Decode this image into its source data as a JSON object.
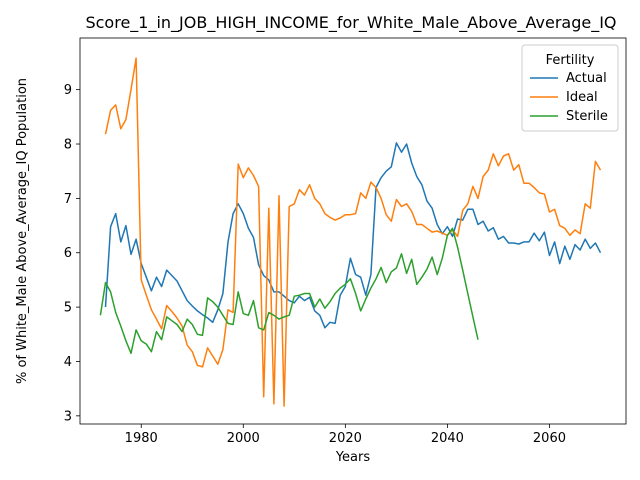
{
  "chart_data": {
    "type": "line",
    "title": "Score_1_in_JOB_HIGH_INCOME_for_White_Male_Above_Average_IQ",
    "xlabel": "Years",
    "ylabel": "% of White_Male Above_Average_IQ Population",
    "xlim": [
      1968,
      2075
    ],
    "ylim": [
      2.85,
      9.95
    ],
    "xticks": [
      1980,
      2000,
      2020,
      2040,
      2060
    ],
    "yticks": [
      3,
      4,
      5,
      6,
      7,
      8,
      9
    ],
    "grid": false,
    "legend": {
      "title": "Fertility",
      "position": "top-right"
    },
    "series": [
      {
        "name": "Actual",
        "color": "#1f77b4",
        "points": [
          [
            1973,
            5.0
          ],
          [
            1974,
            6.48
          ],
          [
            1975,
            6.72
          ],
          [
            1976,
            6.2
          ],
          [
            1977,
            6.5
          ],
          [
            1978,
            5.97
          ],
          [
            1979,
            6.25
          ],
          [
            1980,
            5.8
          ],
          [
            1981,
            5.55
          ],
          [
            1982,
            5.3
          ],
          [
            1983,
            5.55
          ],
          [
            1984,
            5.38
          ],
          [
            1985,
            5.68
          ],
          [
            1986,
            5.58
          ],
          [
            1987,
            5.48
          ],
          [
            1988,
            5.3
          ],
          [
            1989,
            5.12
          ],
          [
            1990,
            5.02
          ],
          [
            1991,
            4.93
          ],
          [
            1992,
            4.86
          ],
          [
            1993,
            4.8
          ],
          [
            1994,
            4.72
          ],
          [
            1995,
            4.95
          ],
          [
            1996,
            5.25
          ],
          [
            1997,
            6.2
          ],
          [
            1998,
            6.72
          ],
          [
            1999,
            6.9
          ],
          [
            2000,
            6.72
          ],
          [
            2001,
            6.45
          ],
          [
            2002,
            6.28
          ],
          [
            2003,
            5.78
          ],
          [
            2004,
            5.58
          ],
          [
            2005,
            5.5
          ],
          [
            2006,
            5.28
          ],
          [
            2007,
            5.28
          ],
          [
            2008,
            5.2
          ],
          [
            2009,
            5.12
          ],
          [
            2010,
            5.08
          ],
          [
            2011,
            5.2
          ],
          [
            2012,
            5.12
          ],
          [
            2013,
            5.18
          ],
          [
            2014,
            4.93
          ],
          [
            2015,
            4.85
          ],
          [
            2016,
            4.62
          ],
          [
            2017,
            4.72
          ],
          [
            2018,
            4.7
          ],
          [
            2019,
            5.22
          ],
          [
            2020,
            5.38
          ],
          [
            2021,
            5.9
          ],
          [
            2022,
            5.6
          ],
          [
            2023,
            5.55
          ],
          [
            2024,
            5.22
          ],
          [
            2025,
            5.6
          ],
          [
            2026,
            7.2
          ],
          [
            2027,
            7.38
          ],
          [
            2028,
            7.5
          ],
          [
            2029,
            7.58
          ],
          [
            2030,
            8.02
          ],
          [
            2031,
            7.85
          ],
          [
            2032,
            8.0
          ],
          [
            2033,
            7.65
          ],
          [
            2034,
            7.4
          ],
          [
            2035,
            7.25
          ],
          [
            2036,
            6.95
          ],
          [
            2037,
            6.82
          ],
          [
            2038,
            6.52
          ],
          [
            2039,
            6.35
          ],
          [
            2040,
            6.48
          ],
          [
            2041,
            6.3
          ],
          [
            2042,
            6.62
          ],
          [
            2043,
            6.6
          ],
          [
            2044,
            6.8
          ],
          [
            2045,
            6.8
          ],
          [
            2046,
            6.52
          ],
          [
            2047,
            6.58
          ],
          [
            2048,
            6.4
          ],
          [
            2049,
            6.46
          ],
          [
            2050,
            6.25
          ],
          [
            2051,
            6.3
          ],
          [
            2052,
            6.18
          ],
          [
            2053,
            6.18
          ],
          [
            2054,
            6.16
          ],
          [
            2055,
            6.2
          ],
          [
            2056,
            6.2
          ],
          [
            2057,
            6.36
          ],
          [
            2058,
            6.22
          ],
          [
            2059,
            6.38
          ],
          [
            2060,
            5.95
          ],
          [
            2061,
            6.2
          ],
          [
            2062,
            5.8
          ],
          [
            2063,
            6.12
          ],
          [
            2064,
            5.88
          ],
          [
            2065,
            6.15
          ],
          [
            2066,
            6.05
          ],
          [
            2067,
            6.25
          ],
          [
            2068,
            6.08
          ],
          [
            2069,
            6.18
          ],
          [
            2070,
            6.0
          ]
        ]
      },
      {
        "name": "Ideal",
        "color": "#ff7f0e",
        "points": [
          [
            1973,
            8.18
          ],
          [
            1974,
            8.62
          ],
          [
            1975,
            8.72
          ],
          [
            1976,
            8.28
          ],
          [
            1977,
            8.45
          ],
          [
            1978,
            9.0
          ],
          [
            1979,
            9.58
          ],
          [
            1980,
            5.5
          ],
          [
            1981,
            5.22
          ],
          [
            1982,
            4.95
          ],
          [
            1983,
            4.78
          ],
          [
            1984,
            4.6
          ],
          [
            1985,
            5.03
          ],
          [
            1986,
            4.92
          ],
          [
            1987,
            4.8
          ],
          [
            1988,
            4.65
          ],
          [
            1989,
            4.3
          ],
          [
            1990,
            4.18
          ],
          [
            1991,
            3.93
          ],
          [
            1992,
            3.9
          ],
          [
            1993,
            4.25
          ],
          [
            1994,
            4.1
          ],
          [
            1995,
            3.95
          ],
          [
            1996,
            4.22
          ],
          [
            1997,
            4.95
          ],
          [
            1998,
            4.9
          ],
          [
            1999,
            7.63
          ],
          [
            2000,
            7.38
          ],
          [
            2001,
            7.56
          ],
          [
            2002,
            7.42
          ],
          [
            2003,
            7.22
          ],
          [
            2004,
            3.35
          ],
          [
            2005,
            6.82
          ],
          [
            2006,
            3.22
          ],
          [
            2007,
            7.05
          ],
          [
            2008,
            3.18
          ],
          [
            2009,
            6.85
          ],
          [
            2010,
            6.9
          ],
          [
            2011,
            7.16
          ],
          [
            2012,
            7.06
          ],
          [
            2013,
            7.25
          ],
          [
            2014,
            7.0
          ],
          [
            2015,
            6.9
          ],
          [
            2016,
            6.72
          ],
          [
            2017,
            6.65
          ],
          [
            2018,
            6.6
          ],
          [
            2019,
            6.64
          ],
          [
            2020,
            6.7
          ],
          [
            2021,
            6.7
          ],
          [
            2022,
            6.72
          ],
          [
            2023,
            7.1
          ],
          [
            2024,
            7.0
          ],
          [
            2025,
            7.3
          ],
          [
            2026,
            7.2
          ],
          [
            2027,
            7.0
          ],
          [
            2028,
            6.7
          ],
          [
            2029,
            6.58
          ],
          [
            2030,
            6.98
          ],
          [
            2031,
            6.85
          ],
          [
            2032,
            6.9
          ],
          [
            2033,
            6.76
          ],
          [
            2034,
            6.52
          ],
          [
            2035,
            6.52
          ],
          [
            2036,
            6.45
          ],
          [
            2037,
            6.38
          ],
          [
            2038,
            6.4
          ],
          [
            2039,
            6.36
          ],
          [
            2040,
            6.32
          ],
          [
            2041,
            6.42
          ],
          [
            2042,
            6.3
          ],
          [
            2043,
            6.78
          ],
          [
            2044,
            6.9
          ],
          [
            2045,
            7.22
          ],
          [
            2046,
            7.0
          ],
          [
            2047,
            7.4
          ],
          [
            2048,
            7.52
          ],
          [
            2049,
            7.82
          ],
          [
            2050,
            7.6
          ],
          [
            2051,
            7.78
          ],
          [
            2052,
            7.82
          ],
          [
            2053,
            7.52
          ],
          [
            2054,
            7.62
          ],
          [
            2055,
            7.28
          ],
          [
            2056,
            7.28
          ],
          [
            2057,
            7.2
          ],
          [
            2058,
            7.1
          ],
          [
            2059,
            7.08
          ],
          [
            2060,
            6.75
          ],
          [
            2061,
            6.8
          ],
          [
            2062,
            6.5
          ],
          [
            2063,
            6.45
          ],
          [
            2064,
            6.32
          ],
          [
            2065,
            6.42
          ],
          [
            2066,
            6.35
          ],
          [
            2067,
            6.9
          ],
          [
            2068,
            6.82
          ],
          [
            2069,
            7.68
          ],
          [
            2070,
            7.52
          ]
        ]
      },
      {
        "name": "Sterile",
        "color": "#2ca02c",
        "points": [
          [
            1972,
            4.85
          ],
          [
            1973,
            5.45
          ],
          [
            1974,
            5.28
          ],
          [
            1975,
            4.9
          ],
          [
            1976,
            4.65
          ],
          [
            1977,
            4.38
          ],
          [
            1978,
            4.15
          ],
          [
            1979,
            4.58
          ],
          [
            1980,
            4.38
          ],
          [
            1981,
            4.32
          ],
          [
            1982,
            4.18
          ],
          [
            1983,
            4.55
          ],
          [
            1984,
            4.4
          ],
          [
            1985,
            4.82
          ],
          [
            1986,
            4.75
          ],
          [
            1987,
            4.68
          ],
          [
            1988,
            4.55
          ],
          [
            1989,
            4.78
          ],
          [
            1990,
            4.68
          ],
          [
            1991,
            4.5
          ],
          [
            1992,
            4.48
          ],
          [
            1993,
            5.17
          ],
          [
            1994,
            5.1
          ],
          [
            1995,
            5.0
          ],
          [
            1996,
            4.85
          ],
          [
            1997,
            4.7
          ],
          [
            1998,
            4.68
          ],
          [
            1999,
            5.28
          ],
          [
            2000,
            4.88
          ],
          [
            2001,
            4.85
          ],
          [
            2002,
            5.12
          ],
          [
            2003,
            4.62
          ],
          [
            2004,
            4.58
          ],
          [
            2005,
            4.9
          ],
          [
            2006,
            4.85
          ],
          [
            2007,
            4.78
          ],
          [
            2008,
            4.82
          ],
          [
            2009,
            4.85
          ],
          [
            2010,
            5.2
          ],
          [
            2011,
            5.22
          ],
          [
            2012,
            5.25
          ],
          [
            2013,
            5.25
          ],
          [
            2014,
            5.0
          ],
          [
            2015,
            5.15
          ],
          [
            2016,
            4.98
          ],
          [
            2017,
            5.1
          ],
          [
            2018,
            5.25
          ],
          [
            2019,
            5.35
          ],
          [
            2020,
            5.42
          ],
          [
            2021,
            5.52
          ],
          [
            2022,
            5.25
          ],
          [
            2023,
            4.93
          ],
          [
            2024,
            5.15
          ],
          [
            2025,
            5.35
          ],
          [
            2026,
            5.52
          ],
          [
            2027,
            5.73
          ],
          [
            2028,
            5.45
          ],
          [
            2029,
            5.65
          ],
          [
            2030,
            5.72
          ],
          [
            2031,
            5.98
          ],
          [
            2032,
            5.62
          ],
          [
            2033,
            5.88
          ],
          [
            2034,
            5.42
          ],
          [
            2035,
            5.55
          ],
          [
            2036,
            5.7
          ],
          [
            2037,
            5.92
          ],
          [
            2038,
            5.6
          ],
          [
            2039,
            5.9
          ],
          [
            2040,
            6.32
          ],
          [
            2041,
            6.45
          ],
          [
            2042,
            6.1
          ],
          [
            2043,
            5.68
          ],
          [
            2044,
            5.25
          ],
          [
            2045,
            4.82
          ],
          [
            2046,
            4.4
          ]
        ]
      }
    ]
  }
}
